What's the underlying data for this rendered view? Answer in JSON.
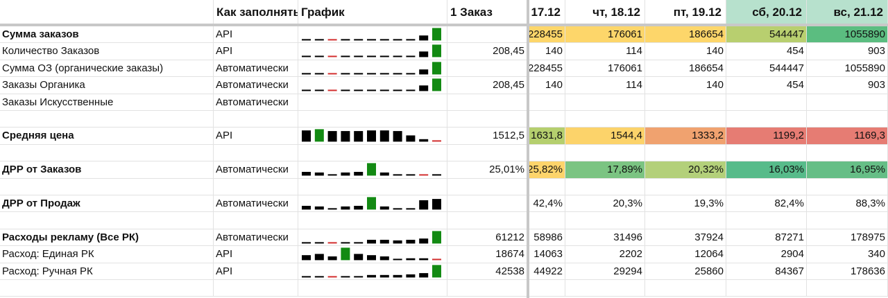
{
  "header": {
    "cells": [
      "Как заполнять",
      "График",
      "1 Заказ",
      "17.12",
      "чт, 18.12",
      "пт, 19.12",
      "сб, 20.12",
      "вс, 21.12"
    ],
    "fills": [
      null,
      null,
      null,
      null,
      null,
      null,
      "#b7e1cd",
      "#b7e1cd"
    ]
  },
  "rows": [
    {
      "bold": true,
      "cells": [
        "Сумма заказов",
        "API",
        null,
        null,
        "228455",
        "176061",
        "186654",
        "544447",
        "1055890"
      ],
      "fills": [
        "#fdd66a",
        "#fdd66a",
        "#fdd66a",
        "#b8cf6f",
        "#5bbd80"
      ],
      "spark": {
        "values": [
          4,
          4,
          2,
          4,
          4,
          4,
          4,
          4,
          4,
          40,
          100
        ],
        "colors": [
          "#000",
          "#000",
          "#d32f2f",
          "#000",
          "#000",
          "#000",
          "#000",
          "#000",
          "#000",
          "#000",
          "#138a13"
        ]
      }
    },
    {
      "bold": false,
      "cells": [
        "Количество Заказов",
        "API",
        null,
        "208,45",
        "140",
        "114",
        "140",
        "454",
        "903"
      ],
      "spark": {
        "values": [
          4,
          4,
          2,
          4,
          4,
          4,
          4,
          4,
          6,
          45,
          100
        ],
        "colors": [
          "#000",
          "#000",
          "#d32f2f",
          "#000",
          "#000",
          "#000",
          "#000",
          "#000",
          "#000",
          "#000",
          "#138a13"
        ]
      }
    },
    {
      "bold": false,
      "cells": [
        "Сумма ОЗ (органические заказы)",
        "Автоматически",
        null,
        null,
        "228455",
        "176061",
        "186654",
        "544447",
        "1055890"
      ],
      "spark": {
        "values": [
          4,
          4,
          2,
          4,
          4,
          4,
          4,
          4,
          4,
          40,
          100
        ],
        "colors": [
          "#000",
          "#000",
          "#d32f2f",
          "#000",
          "#000",
          "#000",
          "#000",
          "#000",
          "#000",
          "#000",
          "#138a13"
        ]
      }
    },
    {
      "bold": false,
      "cells": [
        "Заказы Органика",
        "Автоматически",
        null,
        "208,45",
        "140",
        "114",
        "140",
        "454",
        "903"
      ],
      "spark": {
        "values": [
          4,
          4,
          2,
          4,
          4,
          4,
          4,
          4,
          6,
          45,
          100
        ],
        "colors": [
          "#000",
          "#000",
          "#d32f2f",
          "#000",
          "#000",
          "#000",
          "#000",
          "#000",
          "#000",
          "#000",
          "#138a13"
        ]
      }
    },
    {
      "bold": false,
      "cells": [
        "Заказы Искусственные",
        "Автоматически",
        null,
        null,
        null,
        null,
        null,
        null,
        null
      ]
    },
    {
      "bold": false,
      "cells": [
        null,
        null,
        null,
        null,
        null,
        null,
        null,
        null,
        null
      ]
    },
    {
      "bold": true,
      "cells": [
        "Средняя цена",
        "API",
        null,
        "1512,5",
        "1631,8",
        "1544,4",
        "1333,2",
        "1199,2",
        "1169,3"
      ],
      "fills": [
        "#b5cf6e",
        "#fcd36a",
        "#f0a26f",
        "#e67c73",
        "#e67c73"
      ],
      "spark": {
        "values": [
          90,
          100,
          85,
          85,
          85,
          90,
          90,
          85,
          50,
          20,
          8
        ],
        "colors": [
          "#000",
          "#138a13",
          "#000",
          "#000",
          "#000",
          "#000",
          "#000",
          "#000",
          "#000",
          "#000",
          "#d32f2f"
        ]
      }
    },
    {
      "bold": false,
      "cells": [
        null,
        null,
        null,
        null,
        null,
        null,
        null,
        null,
        null
      ]
    },
    {
      "bold": true,
      "cells": [
        "ДРР от Заказов",
        "Автоматически",
        null,
        "25,01%",
        "25,82%",
        "17,89%",
        "20,32%",
        "16,03%",
        "16,95%"
      ],
      "fills": [
        "#fdd46b",
        "#7bc482",
        "#b3d07a",
        "#57bb8a",
        "#66be86"
      ],
      "spark": {
        "values": [
          30,
          25,
          10,
          25,
          30,
          100,
          25,
          10,
          10,
          2,
          10
        ],
        "colors": [
          "#000",
          "#000",
          "#000",
          "#000",
          "#000",
          "#138a13",
          "#000",
          "#000",
          "#000",
          "#d32f2f",
          "#000"
        ]
      }
    },
    {
      "bold": false,
      "cells": [
        null,
        null,
        null,
        null,
        null,
        null,
        null,
        null,
        null
      ]
    },
    {
      "bold": true,
      "cells": [
        "ДРР от Продаж",
        "Автоматически",
        null,
        null,
        "42,4%",
        "20,3%",
        "19,3%",
        "82,4%",
        "88,3%"
      ],
      "spark": {
        "values": [
          30,
          25,
          10,
          25,
          30,
          100,
          25,
          10,
          10,
          75,
          85
        ],
        "colors": [
          "#000",
          "#000",
          "#000",
          "#000",
          "#000",
          "#138a13",
          "#000",
          "#000",
          "#000",
          "#000",
          "#000"
        ]
      }
    },
    {
      "bold": false,
      "cells": [
        null,
        null,
        null,
        null,
        null,
        null,
        null,
        null,
        null
      ]
    },
    {
      "bold": true,
      "cells": [
        "Расходы рекламу (Все РК)",
        "Автоматически",
        null,
        "61212",
        "58986",
        "31496",
        "37924",
        "87271",
        "178975"
      ],
      "spark": {
        "values": [
          5,
          5,
          3,
          10,
          10,
          30,
          30,
          25,
          30,
          40,
          100
        ],
        "colors": [
          "#000",
          "#000",
          "#d32f2f",
          "#000",
          "#000",
          "#000",
          "#000",
          "#000",
          "#000",
          "#000",
          "#138a13"
        ]
      }
    },
    {
      "bold": false,
      "cells": [
        "Расход: Единая РК",
        "API",
        null,
        "18674",
        "14063",
        "2202",
        "12064",
        "2904",
        "340"
      ],
      "spark": {
        "values": [
          40,
          50,
          30,
          100,
          50,
          40,
          30,
          10,
          15,
          15,
          3
        ],
        "colors": [
          "#000",
          "#000",
          "#000",
          "#138a13",
          "#000",
          "#000",
          "#000",
          "#000",
          "#000",
          "#000",
          "#d32f2f"
        ]
      }
    },
    {
      "bold": false,
      "cells": [
        "Расход: Ручная РК",
        "API",
        null,
        "42538",
        "44922",
        "29294",
        "25860",
        "84367",
        "178636"
      ],
      "spark": {
        "values": [
          5,
          5,
          3,
          5,
          5,
          20,
          20,
          20,
          25,
          35,
          100
        ],
        "colors": [
          "#000",
          "#000",
          "#d32f2f",
          "#000",
          "#000",
          "#000",
          "#000",
          "#000",
          "#000",
          "#000",
          "#138a13"
        ]
      }
    },
    {
      "bold": false,
      "cells": [
        null,
        null,
        null,
        null,
        null,
        null,
        null,
        null,
        null
      ]
    }
  ]
}
